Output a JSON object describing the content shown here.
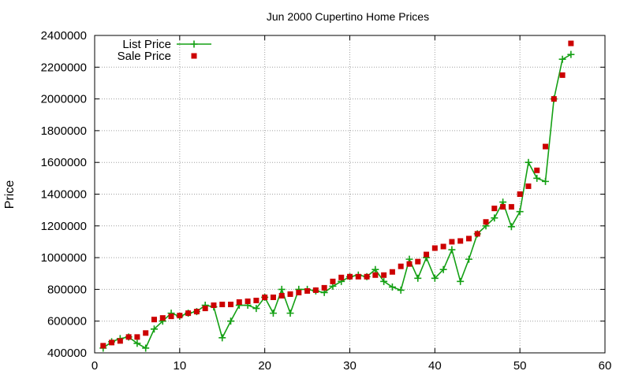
{
  "chart_data": {
    "type": "line",
    "title": "Jun 2000 Cupertino Home Prices",
    "xlabel": "",
    "ylabel": "Price",
    "xlim": [
      0,
      60
    ],
    "ylim": [
      400000,
      2400000
    ],
    "x_ticks": [
      0,
      10,
      20,
      30,
      40,
      50,
      60
    ],
    "y_ticks": [
      400000,
      600000,
      800000,
      1000000,
      1200000,
      1400000,
      1600000,
      1800000,
      2000000,
      2200000,
      2400000
    ],
    "grid": true,
    "legend_position": "top-left",
    "series": [
      {
        "name": "List Price",
        "style": "line-with-plus-markers",
        "color": "#14a014",
        "x": [
          1,
          2,
          3,
          4,
          5,
          6,
          7,
          8,
          9,
          10,
          11,
          12,
          13,
          14,
          15,
          16,
          17,
          18,
          19,
          20,
          21,
          22,
          23,
          24,
          25,
          26,
          27,
          28,
          29,
          30,
          31,
          32,
          33,
          34,
          35,
          36,
          37,
          38,
          39,
          40,
          41,
          42,
          43,
          44,
          45,
          46,
          47,
          48,
          49,
          50,
          51,
          52,
          53,
          54,
          55,
          56
        ],
        "values": [
          430000,
          470000,
          490000,
          500000,
          460000,
          430000,
          550000,
          600000,
          650000,
          630000,
          650000,
          660000,
          700000,
          690000,
          495000,
          600000,
          700000,
          700000,
          680000,
          750000,
          650000,
          800000,
          650000,
          800000,
          800000,
          790000,
          780000,
          820000,
          850000,
          880000,
          890000,
          880000,
          925000,
          850000,
          815000,
          795000,
          990000,
          870000,
          1000000,
          870000,
          925000,
          1050000,
          850000,
          990000,
          1150000,
          1200000,
          1250000,
          1350000,
          1195000,
          1290000,
          1600000,
          1500000,
          1480000,
          2000000,
          2250000,
          2280000
        ]
      },
      {
        "name": "Sale Price",
        "style": "square-markers",
        "color": "#cc0000",
        "x": [
          1,
          2,
          3,
          4,
          5,
          6,
          7,
          8,
          9,
          10,
          11,
          12,
          13,
          14,
          15,
          16,
          17,
          18,
          19,
          20,
          21,
          22,
          23,
          24,
          25,
          26,
          27,
          28,
          29,
          30,
          31,
          32,
          33,
          34,
          35,
          36,
          37,
          38,
          39,
          40,
          41,
          42,
          43,
          44,
          45,
          46,
          47,
          48,
          49,
          50,
          51,
          52,
          53,
          54,
          55,
          56
        ],
        "values": [
          445000,
          465000,
          475000,
          500000,
          500000,
          525000,
          610000,
          620000,
          630000,
          635000,
          650000,
          660000,
          680000,
          700000,
          705000,
          705000,
          720000,
          725000,
          730000,
          750000,
          750000,
          760000,
          770000,
          780000,
          790000,
          795000,
          810000,
          850000,
          875000,
          880000,
          880000,
          880000,
          890000,
          890000,
          910000,
          945000,
          960000,
          975000,
          1020000,
          1060000,
          1070000,
          1100000,
          1105000,
          1120000,
          1150000,
          1225000,
          1310000,
          1320000,
          1320000,
          1400000,
          1450000,
          1550000,
          1700000,
          2000000,
          2150000,
          2350000
        ]
      }
    ]
  }
}
